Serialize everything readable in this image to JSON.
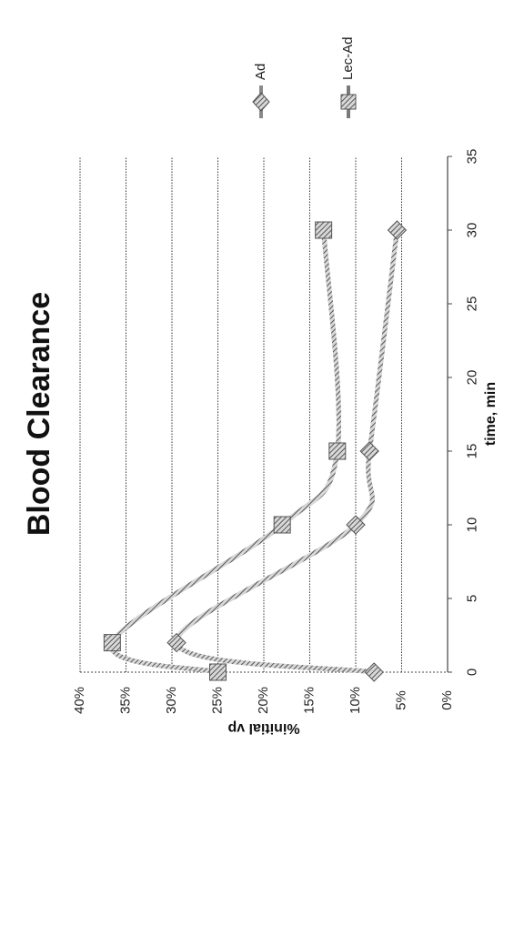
{
  "chart_data": {
    "type": "line",
    "title": "Blood Clearance",
    "xlabel": "time, min",
    "ylabel": "%initial vp",
    "xlim": [
      0,
      35
    ],
    "ylim": [
      0,
      40
    ],
    "x_ticks": [
      "0",
      "5",
      "10",
      "15",
      "20",
      "25",
      "30",
      "35"
    ],
    "y_ticks": [
      "0%",
      "5%",
      "10%",
      "15%",
      "20%",
      "25%",
      "30%",
      "35%",
      "40%"
    ],
    "grid": true,
    "orientation": "rotated 90 degrees counter-clockwise",
    "legend_position": "right",
    "series": [
      {
        "name": "Ad",
        "marker": "diamond",
        "color": "#8a8a8a",
        "points": [
          [
            0,
            8
          ],
          [
            2,
            29.5
          ],
          [
            10,
            10
          ],
          [
            15,
            8.5
          ],
          [
            30,
            5.5
          ]
        ]
      },
      {
        "name": "Lec-Ad",
        "marker": "square",
        "color": "#7a7a7a",
        "points": [
          [
            0,
            25
          ],
          [
            2,
            36.5
          ],
          [
            10,
            18
          ],
          [
            15,
            12
          ],
          [
            30,
            13.5
          ]
        ]
      }
    ]
  }
}
